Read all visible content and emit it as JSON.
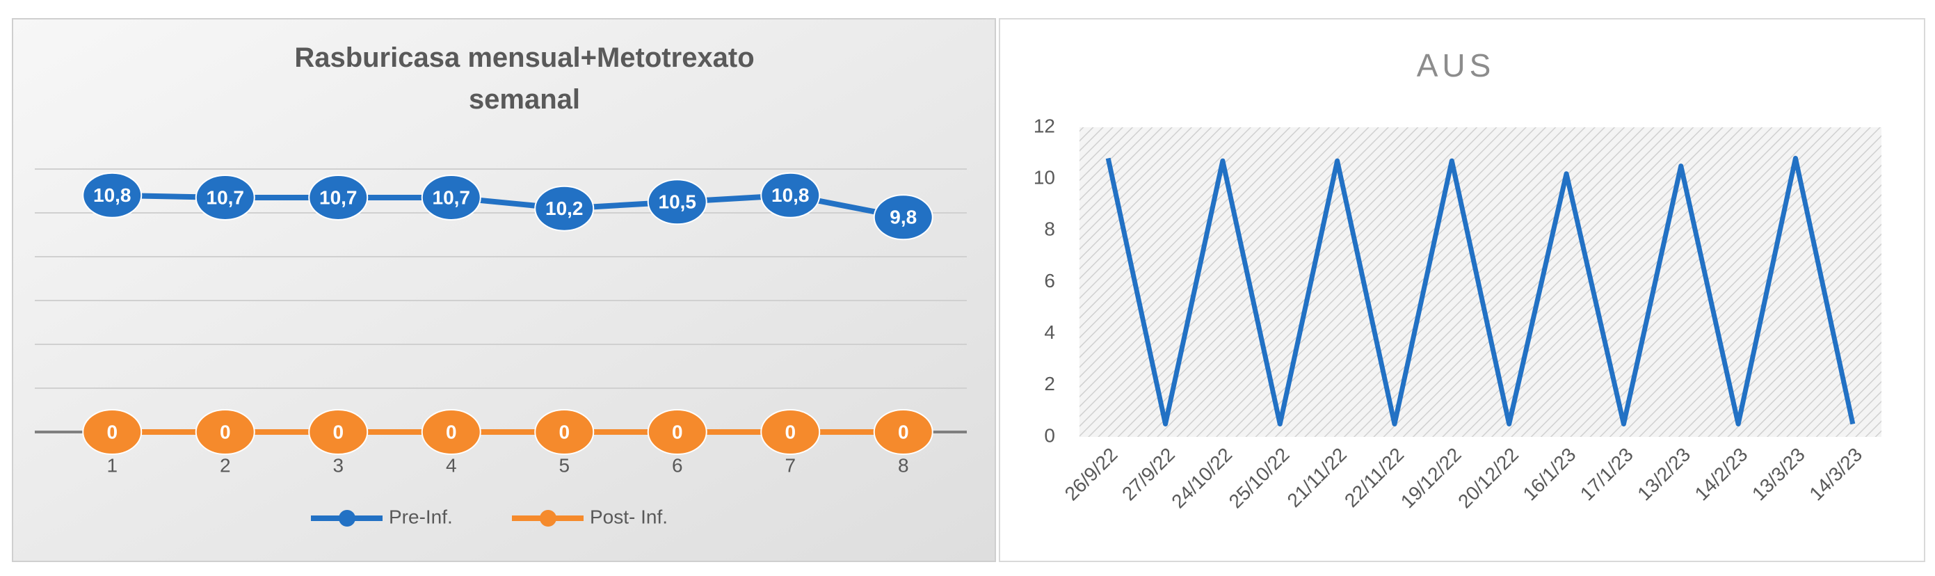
{
  "chart_data": [
    {
      "type": "line",
      "title": "Rasburicasa mensual+Metotrexato semanal",
      "categories": [
        "1",
        "2",
        "3",
        "4",
        "5",
        "6",
        "7",
        "8"
      ],
      "series": [
        {
          "name": "Pre-Inf.",
          "color": "#2271c4",
          "values": [
            10.8,
            10.7,
            10.7,
            10.7,
            10.2,
            10.5,
            10.8,
            9.8
          ],
          "value_labels": [
            "10,8",
            "10,7",
            "10,7",
            "10,7",
            "10,2",
            "10,5",
            "10,8",
            "9,8"
          ]
        },
        {
          "name": "Post- Inf.",
          "color": "#f58a2c",
          "values": [
            0,
            0,
            0,
            0,
            0,
            0,
            0,
            0
          ]
        }
      ],
      "ylim": [
        0,
        12
      ],
      "yticks": [
        0,
        2,
        4,
        6,
        8,
        10,
        12
      ],
      "show_ytick_labels": false,
      "grid": true,
      "markers": true,
      "data_labels": true,
      "legend": "bottom"
    },
    {
      "type": "line",
      "title": "AUS",
      "categories": [
        "26/9/22",
        "27/9/22",
        "24/10/22",
        "25/10/22",
        "21/11/22",
        "22/11/22",
        "19/12/22",
        "20/12/22",
        "16/1/23",
        "17/1/23",
        "13/2/23",
        "14/2/23",
        "13/3/23",
        "14/3/23"
      ],
      "series": [
        {
          "color": "#2271c4",
          "values": [
            10.8,
            0.5,
            10.7,
            0.5,
            10.7,
            0.5,
            10.7,
            0.5,
            10.2,
            0.5,
            10.5,
            0.5,
            10.8,
            0.5
          ]
        }
      ],
      "ylim": [
        0,
        12
      ],
      "yticks": [
        0,
        2,
        4,
        6,
        8,
        10,
        12
      ],
      "show_ytick_labels": true,
      "grid": false,
      "markers": false,
      "data_labels": false
    }
  ]
}
